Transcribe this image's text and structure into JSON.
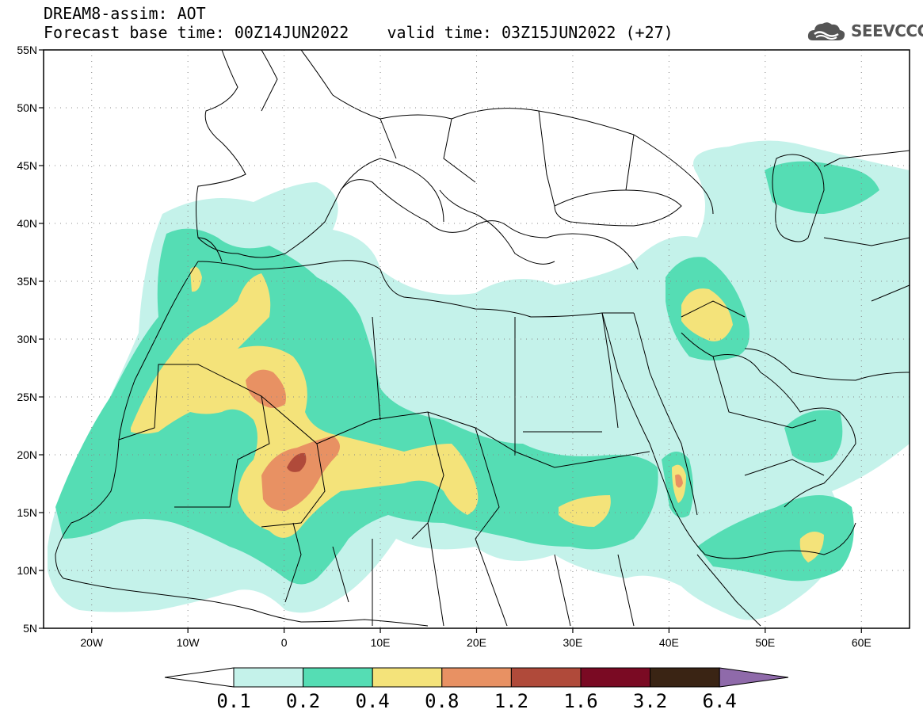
{
  "header": {
    "line1": "DREAM8-assim: AOT",
    "base_time_label": "Forecast base time: 00Z14JUN2022",
    "valid_time_label": "valid time: 03Z15JUN2022 (+27)"
  },
  "logo": {
    "text": "SEEVCCC",
    "icon": "cloud-icon"
  },
  "map": {
    "region": "North Africa, Mediterranean and Middle East",
    "lon_range": [
      -25,
      65
    ],
    "lat_range": [
      5,
      55
    ],
    "lat_ticks": [
      "55N",
      "50N",
      "45N",
      "40N",
      "35N",
      "30N",
      "25N",
      "20N",
      "15N",
      "10N",
      "5N"
    ],
    "lon_ticks": [
      "20W",
      "10W",
      "0",
      "10E",
      "20E",
      "30E",
      "40E",
      "50E",
      "60E"
    ],
    "grid": "dotted"
  },
  "colorbar": {
    "labels": [
      "0.1",
      "0.2",
      "0.4",
      "0.8",
      "1.2",
      "1.6",
      "3.2",
      "6.4"
    ],
    "colors": [
      "#ffffff",
      "#c4f2ea",
      "#55ddb4",
      "#f4e37a",
      "#e89163",
      "#b04a3a",
      "#7a0a23",
      "#3a2414",
      "#8f6aaa"
    ]
  }
}
